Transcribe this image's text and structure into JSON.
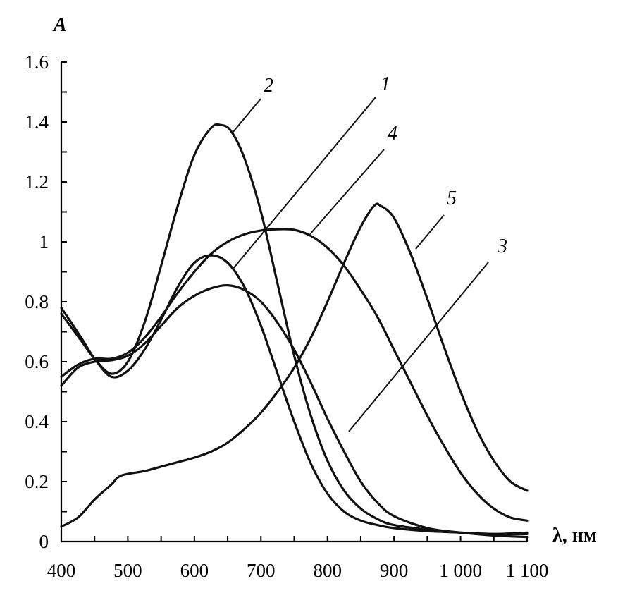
{
  "chart_data": {
    "type": "line",
    "ylabel": "A",
    "xlabel": "λ, нм",
    "xlim": [
      400,
      1100
    ],
    "ylim": [
      0,
      1.6
    ],
    "x_ticks": [
      400,
      500,
      600,
      700,
      800,
      900,
      1000,
      1100
    ],
    "x_tick_labels": [
      "400",
      "500",
      "600",
      "700",
      "800",
      "900",
      "1 000",
      "1 100"
    ],
    "y_ticks": [
      0,
      0.2,
      0.4,
      0.6,
      0.8,
      1.0,
      1.2,
      1.4,
      1.6
    ],
    "y_tick_labels": [
      "0",
      "0.2",
      "0.4",
      "0.6",
      "0.8",
      "1",
      "1.2",
      "1.4",
      "1.6"
    ],
    "series": [
      {
        "name": "1",
        "x": [
          400,
          430,
          450,
          475,
          500,
          525,
          550,
          575,
          600,
          625,
          650,
          675,
          700,
          725,
          750,
          775,
          800,
          825,
          850,
          875,
          900,
          950,
          1000,
          1050,
          1100
        ],
        "y": [
          0.78,
          0.68,
          0.61,
          0.55,
          0.57,
          0.64,
          0.74,
          0.85,
          0.93,
          0.955,
          0.93,
          0.85,
          0.72,
          0.56,
          0.4,
          0.26,
          0.16,
          0.1,
          0.07,
          0.055,
          0.045,
          0.035,
          0.03,
          0.025,
          0.03
        ]
      },
      {
        "name": "2",
        "x": [
          400,
          430,
          450,
          475,
          500,
          525,
          550,
          575,
          600,
          625,
          640,
          655,
          675,
          700,
          725,
          750,
          775,
          800,
          825,
          850,
          875,
          900,
          950,
          1000,
          1050,
          1100
        ],
        "y": [
          0.76,
          0.67,
          0.61,
          0.56,
          0.6,
          0.73,
          0.92,
          1.12,
          1.29,
          1.38,
          1.39,
          1.37,
          1.28,
          1.1,
          0.86,
          0.62,
          0.42,
          0.27,
          0.17,
          0.11,
          0.075,
          0.055,
          0.04,
          0.03,
          0.025,
          0.025
        ]
      },
      {
        "name": "3",
        "x": [
          400,
          425,
          450,
          475,
          500,
          525,
          550,
          575,
          600,
          625,
          650,
          675,
          700,
          725,
          750,
          775,
          800,
          825,
          850,
          875,
          900,
          950,
          1000,
          1050,
          1100
        ],
        "y": [
          0.52,
          0.58,
          0.6,
          0.605,
          0.62,
          0.66,
          0.72,
          0.78,
          0.82,
          0.845,
          0.855,
          0.84,
          0.8,
          0.73,
          0.64,
          0.53,
          0.41,
          0.3,
          0.2,
          0.13,
          0.085,
          0.045,
          0.03,
          0.02,
          0.015
        ]
      },
      {
        "name": "4",
        "x": [
          400,
          425,
          450,
          475,
          500,
          525,
          550,
          575,
          600,
          625,
          650,
          675,
          700,
          725,
          750,
          775,
          800,
          825,
          850,
          875,
          900,
          925,
          950,
          975,
          1000,
          1025,
          1050,
          1075,
          1100
        ],
        "y": [
          0.55,
          0.59,
          0.61,
          0.61,
          0.63,
          0.68,
          0.75,
          0.83,
          0.9,
          0.96,
          1.0,
          1.025,
          1.038,
          1.042,
          1.04,
          1.02,
          0.98,
          0.92,
          0.84,
          0.75,
          0.64,
          0.53,
          0.42,
          0.32,
          0.23,
          0.16,
          0.11,
          0.08,
          0.07
        ]
      },
      {
        "name": "5",
        "x": [
          400,
          425,
          450,
          475,
          490,
          525,
          550,
          575,
          600,
          625,
          650,
          675,
          700,
          725,
          750,
          775,
          800,
          825,
          850,
          870,
          880,
          900,
          925,
          950,
          975,
          1000,
          1025,
          1050,
          1075,
          1100
        ],
        "y": [
          0.05,
          0.08,
          0.14,
          0.19,
          0.22,
          0.235,
          0.25,
          0.265,
          0.28,
          0.3,
          0.33,
          0.375,
          0.43,
          0.5,
          0.58,
          0.68,
          0.8,
          0.93,
          1.05,
          1.12,
          1.12,
          1.08,
          0.96,
          0.81,
          0.65,
          0.5,
          0.37,
          0.27,
          0.2,
          0.17
        ]
      }
    ]
  }
}
